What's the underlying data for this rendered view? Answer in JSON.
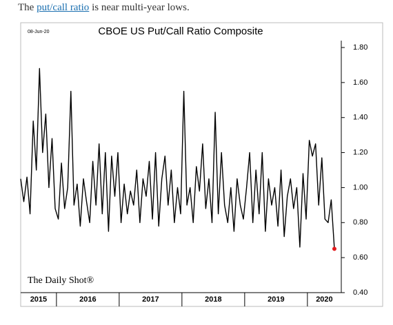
{
  "caption": {
    "before": "The",
    "link": "put/call ratio",
    "after": "is near multi-year lows."
  },
  "chart_data": {
    "type": "line",
    "title": "CBOE US Put/Call Ratio Composite",
    "date": "08-Jun-20",
    "source": "The Daily Shot®",
    "x": [
      2015.43,
      2015.48,
      2015.53,
      2015.58,
      2015.63,
      2015.68,
      2015.73,
      2015.78,
      2015.83,
      2015.88,
      2015.93,
      2015.98,
      2016.03,
      2016.08,
      2016.13,
      2016.18,
      2016.23,
      2016.28,
      2016.33,
      2016.38,
      2016.43,
      2016.48,
      2016.53,
      2016.58,
      2016.63,
      2016.68,
      2016.73,
      2016.78,
      2016.83,
      2016.88,
      2016.93,
      2016.98,
      2017.03,
      2017.08,
      2017.13,
      2017.18,
      2017.23,
      2017.28,
      2017.33,
      2017.38,
      2017.43,
      2017.48,
      2017.53,
      2017.58,
      2017.63,
      2017.68,
      2017.73,
      2017.78,
      2017.83,
      2017.88,
      2017.93,
      2017.98,
      2018.03,
      2018.08,
      2018.13,
      2018.18,
      2018.23,
      2018.28,
      2018.33,
      2018.38,
      2018.43,
      2018.48,
      2018.53,
      2018.58,
      2018.63,
      2018.68,
      2018.73,
      2018.78,
      2018.83,
      2018.88,
      2018.93,
      2018.98,
      2019.03,
      2019.08,
      2019.13,
      2019.18,
      2019.23,
      2019.28,
      2019.33,
      2019.38,
      2019.43,
      2019.48,
      2019.53,
      2019.58,
      2019.63,
      2019.68,
      2019.73,
      2019.78,
      2019.83,
      2019.88,
      2019.93,
      2019.98,
      2020.03,
      2020.08,
      2020.13,
      2020.18,
      2020.23,
      2020.28,
      2020.33,
      2020.38,
      2020.43
    ],
    "series": [
      {
        "color": "#000000",
        "last_point_color": "#e31a1c",
        "values": [
          1.05,
          0.92,
          1.06,
          0.85,
          1.38,
          1.1,
          1.68,
          1.2,
          1.42,
          1.0,
          1.28,
          0.88,
          0.82,
          1.14,
          0.88,
          1.0,
          1.55,
          0.9,
          1.02,
          0.78,
          1.05,
          0.92,
          0.8,
          1.15,
          0.9,
          1.25,
          0.85,
          1.2,
          0.75,
          1.18,
          0.95,
          1.2,
          0.8,
          1.02,
          0.85,
          0.98,
          0.9,
          1.1,
          0.8,
          1.05,
          0.95,
          1.15,
          0.82,
          1.2,
          0.78,
          1.05,
          1.18,
          0.9,
          1.1,
          0.8,
          1.0,
          0.85,
          1.55,
          0.9,
          1.0,
          0.8,
          1.12,
          0.98,
          1.25,
          0.88,
          1.05,
          0.8,
          1.43,
          0.85,
          1.2,
          0.9,
          0.8,
          1.0,
          0.75,
          1.05,
          0.9,
          0.82,
          1.0,
          1.2,
          0.8,
          1.1,
          0.85,
          1.2,
          0.75,
          1.05,
          0.9,
          1.0,
          0.78,
          1.1,
          0.72,
          0.95,
          1.05,
          0.88,
          1.0,
          0.66,
          1.08,
          0.82,
          1.27,
          1.18,
          1.25,
          0.9,
          1.17,
          0.82,
          0.8,
          0.93,
          0.65
        ]
      }
    ],
    "xlim": [
      2015.43,
      2020.54
    ],
    "xticks": [
      2015,
      2016,
      2017,
      2018,
      2019,
      2020
    ],
    "ylim": [
      0.4,
      1.8
    ],
    "yticks": [
      {
        "value": 0.4,
        "label": "0.40"
      },
      {
        "value": 0.6,
        "label": "0.60"
      },
      {
        "value": 0.8,
        "label": "0.80"
      },
      {
        "value": 1.0,
        "label": "1.00"
      },
      {
        "value": 1.2,
        "label": "1.20"
      },
      {
        "value": 1.4,
        "label": "1.40"
      },
      {
        "value": 1.6,
        "label": "1.60"
      },
      {
        "value": 1.8,
        "label": "1.80"
      }
    ],
    "grid": false
  }
}
